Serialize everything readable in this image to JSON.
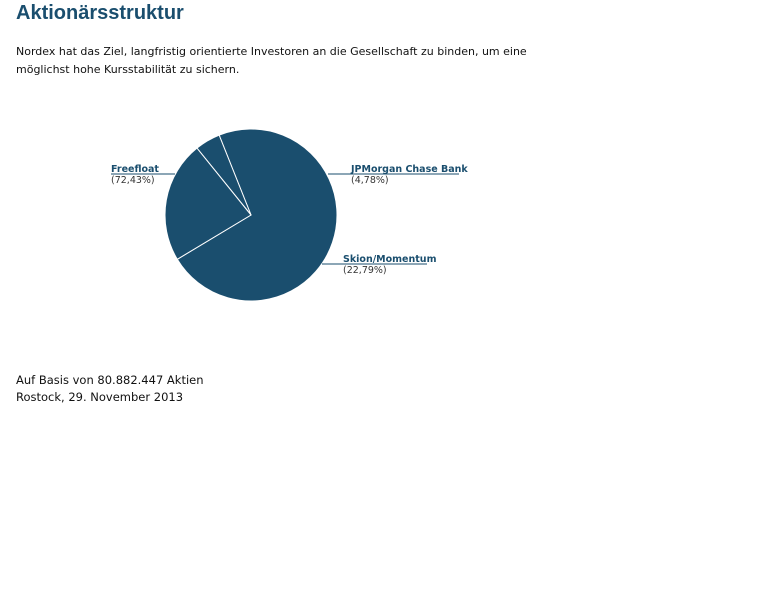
{
  "page": {
    "title": "Aktionärsstruktur",
    "intro_line1": "Nordex hat das Ziel, langfristig orientierte Investoren an die Gesellschaft zu binden, um eine",
    "intro_line2": "möglichst hohe Kursstabilität zu sichern."
  },
  "footer": {
    "shares_note": "Auf Basis von 80.882.447 Aktien",
    "place_date": "Rostock, 29. November 2013"
  },
  "colors": {
    "slice": "#1a4e6e",
    "border": "#ffffff",
    "heading": "#1a4e6e"
  },
  "chart_data": {
    "type": "pie",
    "unit": "%",
    "slices": [
      {
        "name": "Freefloat",
        "value": 72.43,
        "label": "(72,43%)",
        "side": "left"
      },
      {
        "name": "JPMorgan Chase Bank",
        "value": 4.78,
        "label": "(4,78%)",
        "side": "right"
      },
      {
        "name": "Skion/Momentum",
        "value": 22.79,
        "label": "(22,79%)",
        "side": "right"
      }
    ]
  }
}
